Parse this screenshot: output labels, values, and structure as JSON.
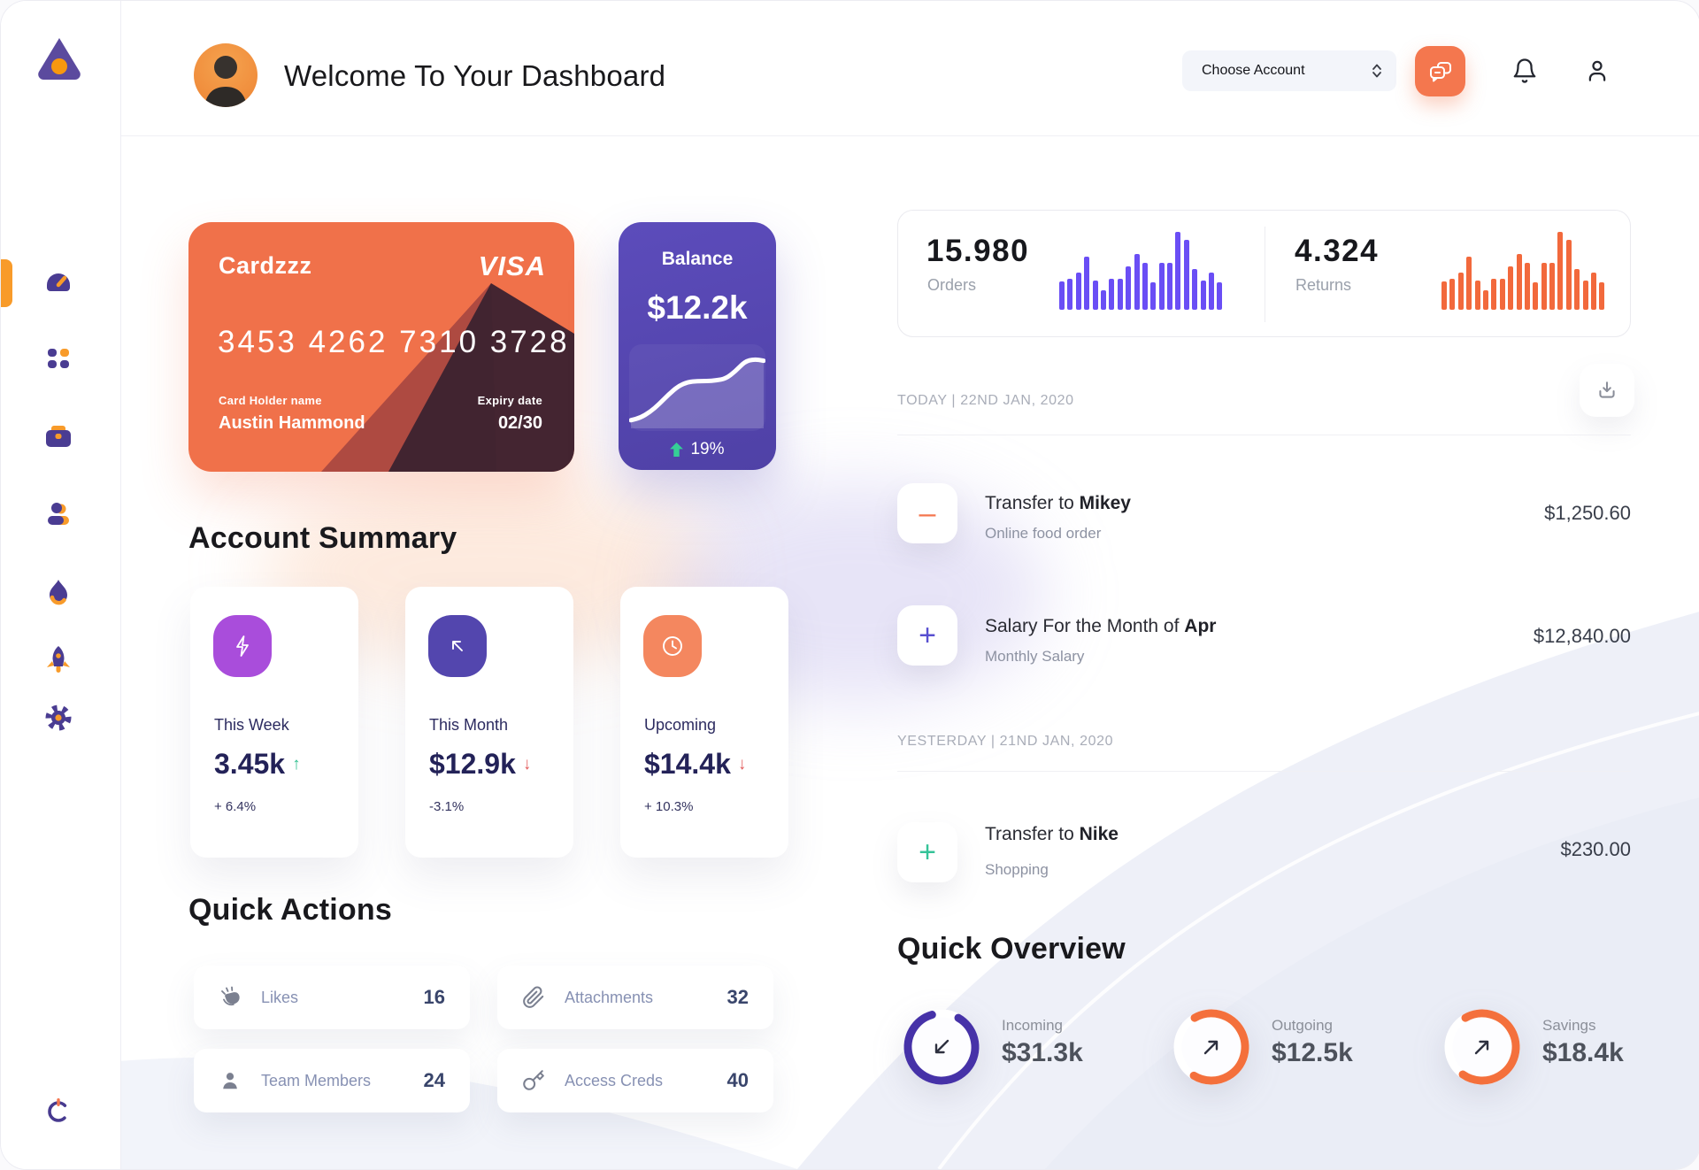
{
  "colors": {
    "accent_orange": "#f0714a",
    "accent_purple": "#5546b0",
    "sidebar_icon_purple": "#4a3c92",
    "sidebar_icon_orange": "#f89b2a",
    "green": "#2fbf8f",
    "red": "#e35d5d"
  },
  "sidebar": {
    "items": [
      {
        "name": "dashboard",
        "active": true
      },
      {
        "name": "apps",
        "active": false
      },
      {
        "name": "portfolio",
        "active": false
      },
      {
        "name": "members",
        "active": false
      },
      {
        "name": "trending",
        "active": false
      },
      {
        "name": "boost",
        "active": false
      },
      {
        "name": "settings",
        "active": false
      }
    ],
    "logout": {
      "name": "logout"
    }
  },
  "header": {
    "title": "Welcome To Your Dashboard",
    "account_select_label": "Choose Account"
  },
  "wallet_card": {
    "name": "Cardzzz",
    "brand": "VISA",
    "number": "3453 4262 7310 3728",
    "holder_label": "Card Holder name",
    "holder": "Austin Hammond",
    "expiry_label": "Expiry date",
    "expiry": "02/30"
  },
  "balance_card": {
    "title": "Balance",
    "value": "$12.2k",
    "change": "19%"
  },
  "stats": {
    "orders": {
      "value": "15.980",
      "label": "Orders"
    },
    "returns": {
      "value": "4.324",
      "label": "Returns"
    }
  },
  "account_summary": {
    "heading": "Account Summary",
    "cards": [
      {
        "label": "This Week",
        "value": "3.45k",
        "delta": "+ 6.4%",
        "trend_glyph": "↑",
        "trend_color": "#2fbf8f",
        "icon": "lightning-icon",
        "color": "#a94ddb"
      },
      {
        "label": "This Month",
        "value": "$12.9k",
        "delta": "-3.1%",
        "trend_glyph": "↓",
        "trend_color": "#e35d5d",
        "icon": "arrow-up-left-icon",
        "color": "#5346ae"
      },
      {
        "label": "Upcoming",
        "value": "$14.4k",
        "delta": "+ 10.3%",
        "trend_glyph": "↓",
        "trend_color": "#e35d5d",
        "icon": "clock-icon",
        "color": "#f4875f"
      }
    ]
  },
  "quick_actions": {
    "heading": "Quick Actions",
    "items": [
      {
        "label": "Likes",
        "count": "16",
        "icon": "clap-icon"
      },
      {
        "label": "Attachments",
        "count": "32",
        "icon": "paperclip-icon"
      },
      {
        "label": "Team Members",
        "count": "24",
        "icon": "member-icon"
      },
      {
        "label": "Access Creds",
        "count": "40",
        "icon": "key-icon"
      }
    ]
  },
  "transactions": {
    "today_label": "TODAY | 22ND JAN, 2020",
    "yesterday_label": "YESTERDAY | 21ND JAN, 2020",
    "rows": [
      {
        "icon_glyph": "–",
        "icon_color": "#f4764f",
        "title_prefix": "Transfer to ",
        "title_strong": "Mikey",
        "subtitle": "Online food order",
        "amount": "$1,250.60"
      },
      {
        "icon_glyph": "+",
        "icon_color": "#584fd0",
        "title_prefix": "Salary For the Month of ",
        "title_strong": "Apr",
        "subtitle": "Monthly Salary",
        "amount": "$12,840.00"
      },
      {
        "icon_glyph": "+",
        "icon_color": "#35c398",
        "title_prefix": "Transfer to ",
        "title_strong": "Nike",
        "subtitle": "Shopping",
        "amount": "$230.00"
      }
    ]
  },
  "quick_overview": {
    "heading": "Quick Overview",
    "items": [
      {
        "label": "Incoming",
        "value": "$31.3k",
        "percent": 87,
        "rotation": -60,
        "color": "#4632a8",
        "arrow": "down-left"
      },
      {
        "label": "Outgoing",
        "value": "$12.5k",
        "percent": 67,
        "rotation": -120,
        "color": "#f4703c",
        "arrow": "up-right"
      },
      {
        "label": "Savings",
        "value": "$18.4k",
        "percent": 68,
        "rotation": -120,
        "color": "#f4703c",
        "arrow": "up-right"
      }
    ]
  },
  "chart_data": [
    {
      "type": "bar",
      "title": "Orders mini bar chart",
      "color": "#6a4ef5",
      "values": [
        36,
        40,
        48,
        68,
        38,
        25,
        40,
        40,
        56,
        72,
        60,
        35,
        60,
        60,
        100,
        90,
        52,
        38,
        48,
        35
      ]
    },
    {
      "type": "bar",
      "title": "Returns mini bar chart",
      "color": "#f2693c",
      "values": [
        36,
        40,
        48,
        68,
        38,
        25,
        40,
        40,
        56,
        72,
        60,
        35,
        60,
        60,
        100,
        90,
        52,
        38,
        48,
        35
      ]
    },
    {
      "type": "line",
      "title": "Balance sparkline",
      "color": "#ffffff",
      "values": [
        10,
        13,
        20,
        30,
        42,
        52,
        57,
        58,
        58,
        59,
        61,
        70,
        82,
        85,
        83
      ]
    }
  ]
}
